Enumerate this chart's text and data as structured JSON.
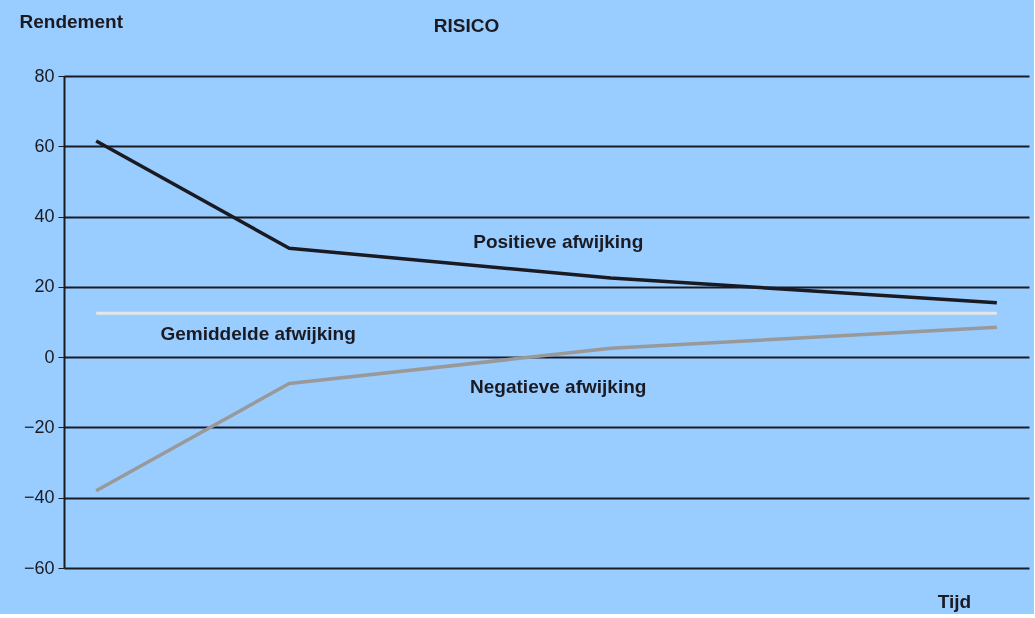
{
  "chart_data": {
    "type": "line",
    "title": "RISICO",
    "ylabel": "Rendement",
    "xlabel": "Tijd",
    "categories": [
      null,
      null,
      null,
      null,
      null,
      null,
      null,
      null,
      null,
      null,
      null,
      null,
      null,
      null,
      null
    ],
    "series": [
      {
        "name": "Positieve afwijking",
        "color": "#1a1a22",
        "values": [
          61.5,
          null,
          null,
          31,
          null,
          null,
          null,
          null,
          22.5,
          null,
          null,
          null,
          null,
          null,
          15.5
        ]
      },
      {
        "name": "Negatieve afwijking",
        "color": "#999999",
        "values": [
          -38,
          null,
          null,
          -7.5,
          null,
          null,
          null,
          null,
          2.5,
          null,
          null,
          null,
          null,
          null,
          8.5
        ]
      }
    ],
    "ref_lines": [
      {
        "axis": "y",
        "value": 12.5,
        "label": "Gemiddelde afwijking",
        "color": "#e6e6e6"
      }
    ],
    "ylim": [
      -60,
      80
    ],
    "yticks": [
      -60,
      -40,
      -20,
      0,
      20,
      40,
      60,
      80
    ],
    "grid": "y",
    "tick_labels": "y",
    "marker": "none",
    "line_style": "solid"
  }
}
